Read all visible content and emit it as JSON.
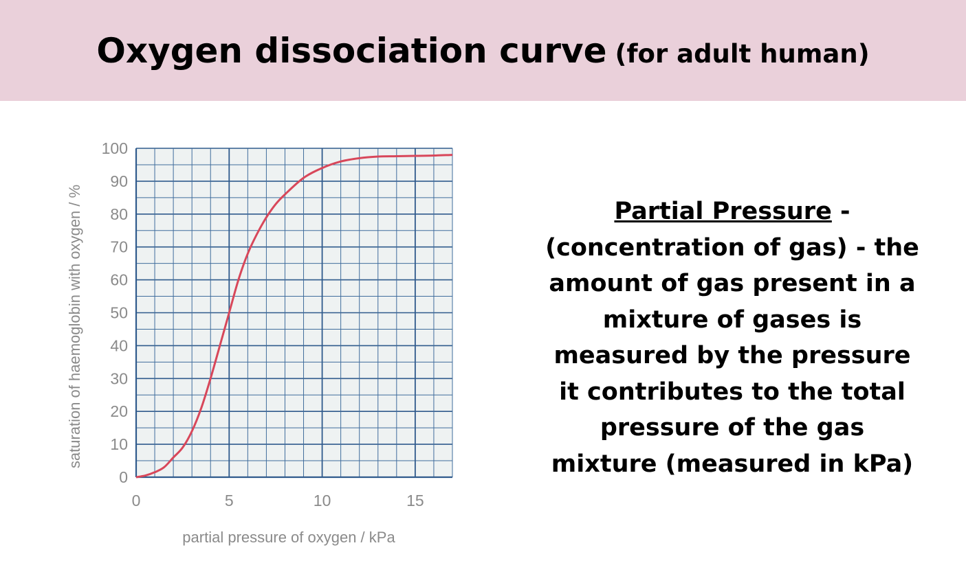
{
  "header": {
    "title": "Oxygen dissociation curve",
    "subtitle": "(for adult human)"
  },
  "definition": {
    "term": "Partial Pressure",
    "term_suffix": " -",
    "lines": [
      "(concentration of gas) - the",
      "amount of gas present in a",
      "mixture of gases is",
      "measured by the pressure",
      "it contributes to the total",
      "pressure of the gas",
      "mixture (measured in kPa)"
    ]
  },
  "colors": {
    "header_bg": "#ead0da",
    "curve": "#d8475a",
    "major_grid": "#2f5a8c",
    "minor_grid": "#3f6c9c",
    "plot_bg": "#eef2f2"
  },
  "chart_data": {
    "type": "line",
    "title": "",
    "xlabel": "partial pressure of oxygen / kPa",
    "ylabel": "saturation of haemoglobin with oxygen / %",
    "xlim": [
      0,
      17
    ],
    "ylim": [
      0,
      100
    ],
    "xticks": [
      "0",
      "5",
      "10",
      "15"
    ],
    "yticks": [
      "0",
      "10",
      "20",
      "30",
      "40",
      "50",
      "60",
      "70",
      "80",
      "90",
      "100"
    ],
    "grid": true,
    "legend": "none",
    "series": [
      {
        "x": [
          0,
          0.5,
          1,
          1.5,
          2,
          2.5,
          3,
          3.5,
          4,
          4.5,
          5,
          5.5,
          6,
          6.5,
          7,
          7.5,
          8,
          9,
          10,
          11,
          12,
          13,
          14,
          15,
          16,
          17
        ],
        "values": [
          0,
          0.5,
          1.5,
          3,
          6,
          9,
          14,
          21,
          30,
          40,
          50,
          60,
          68,
          74,
          79,
          83,
          86,
          91,
          94,
          96,
          97,
          97.5,
          97.6,
          97.7,
          97.8,
          98
        ]
      }
    ]
  }
}
